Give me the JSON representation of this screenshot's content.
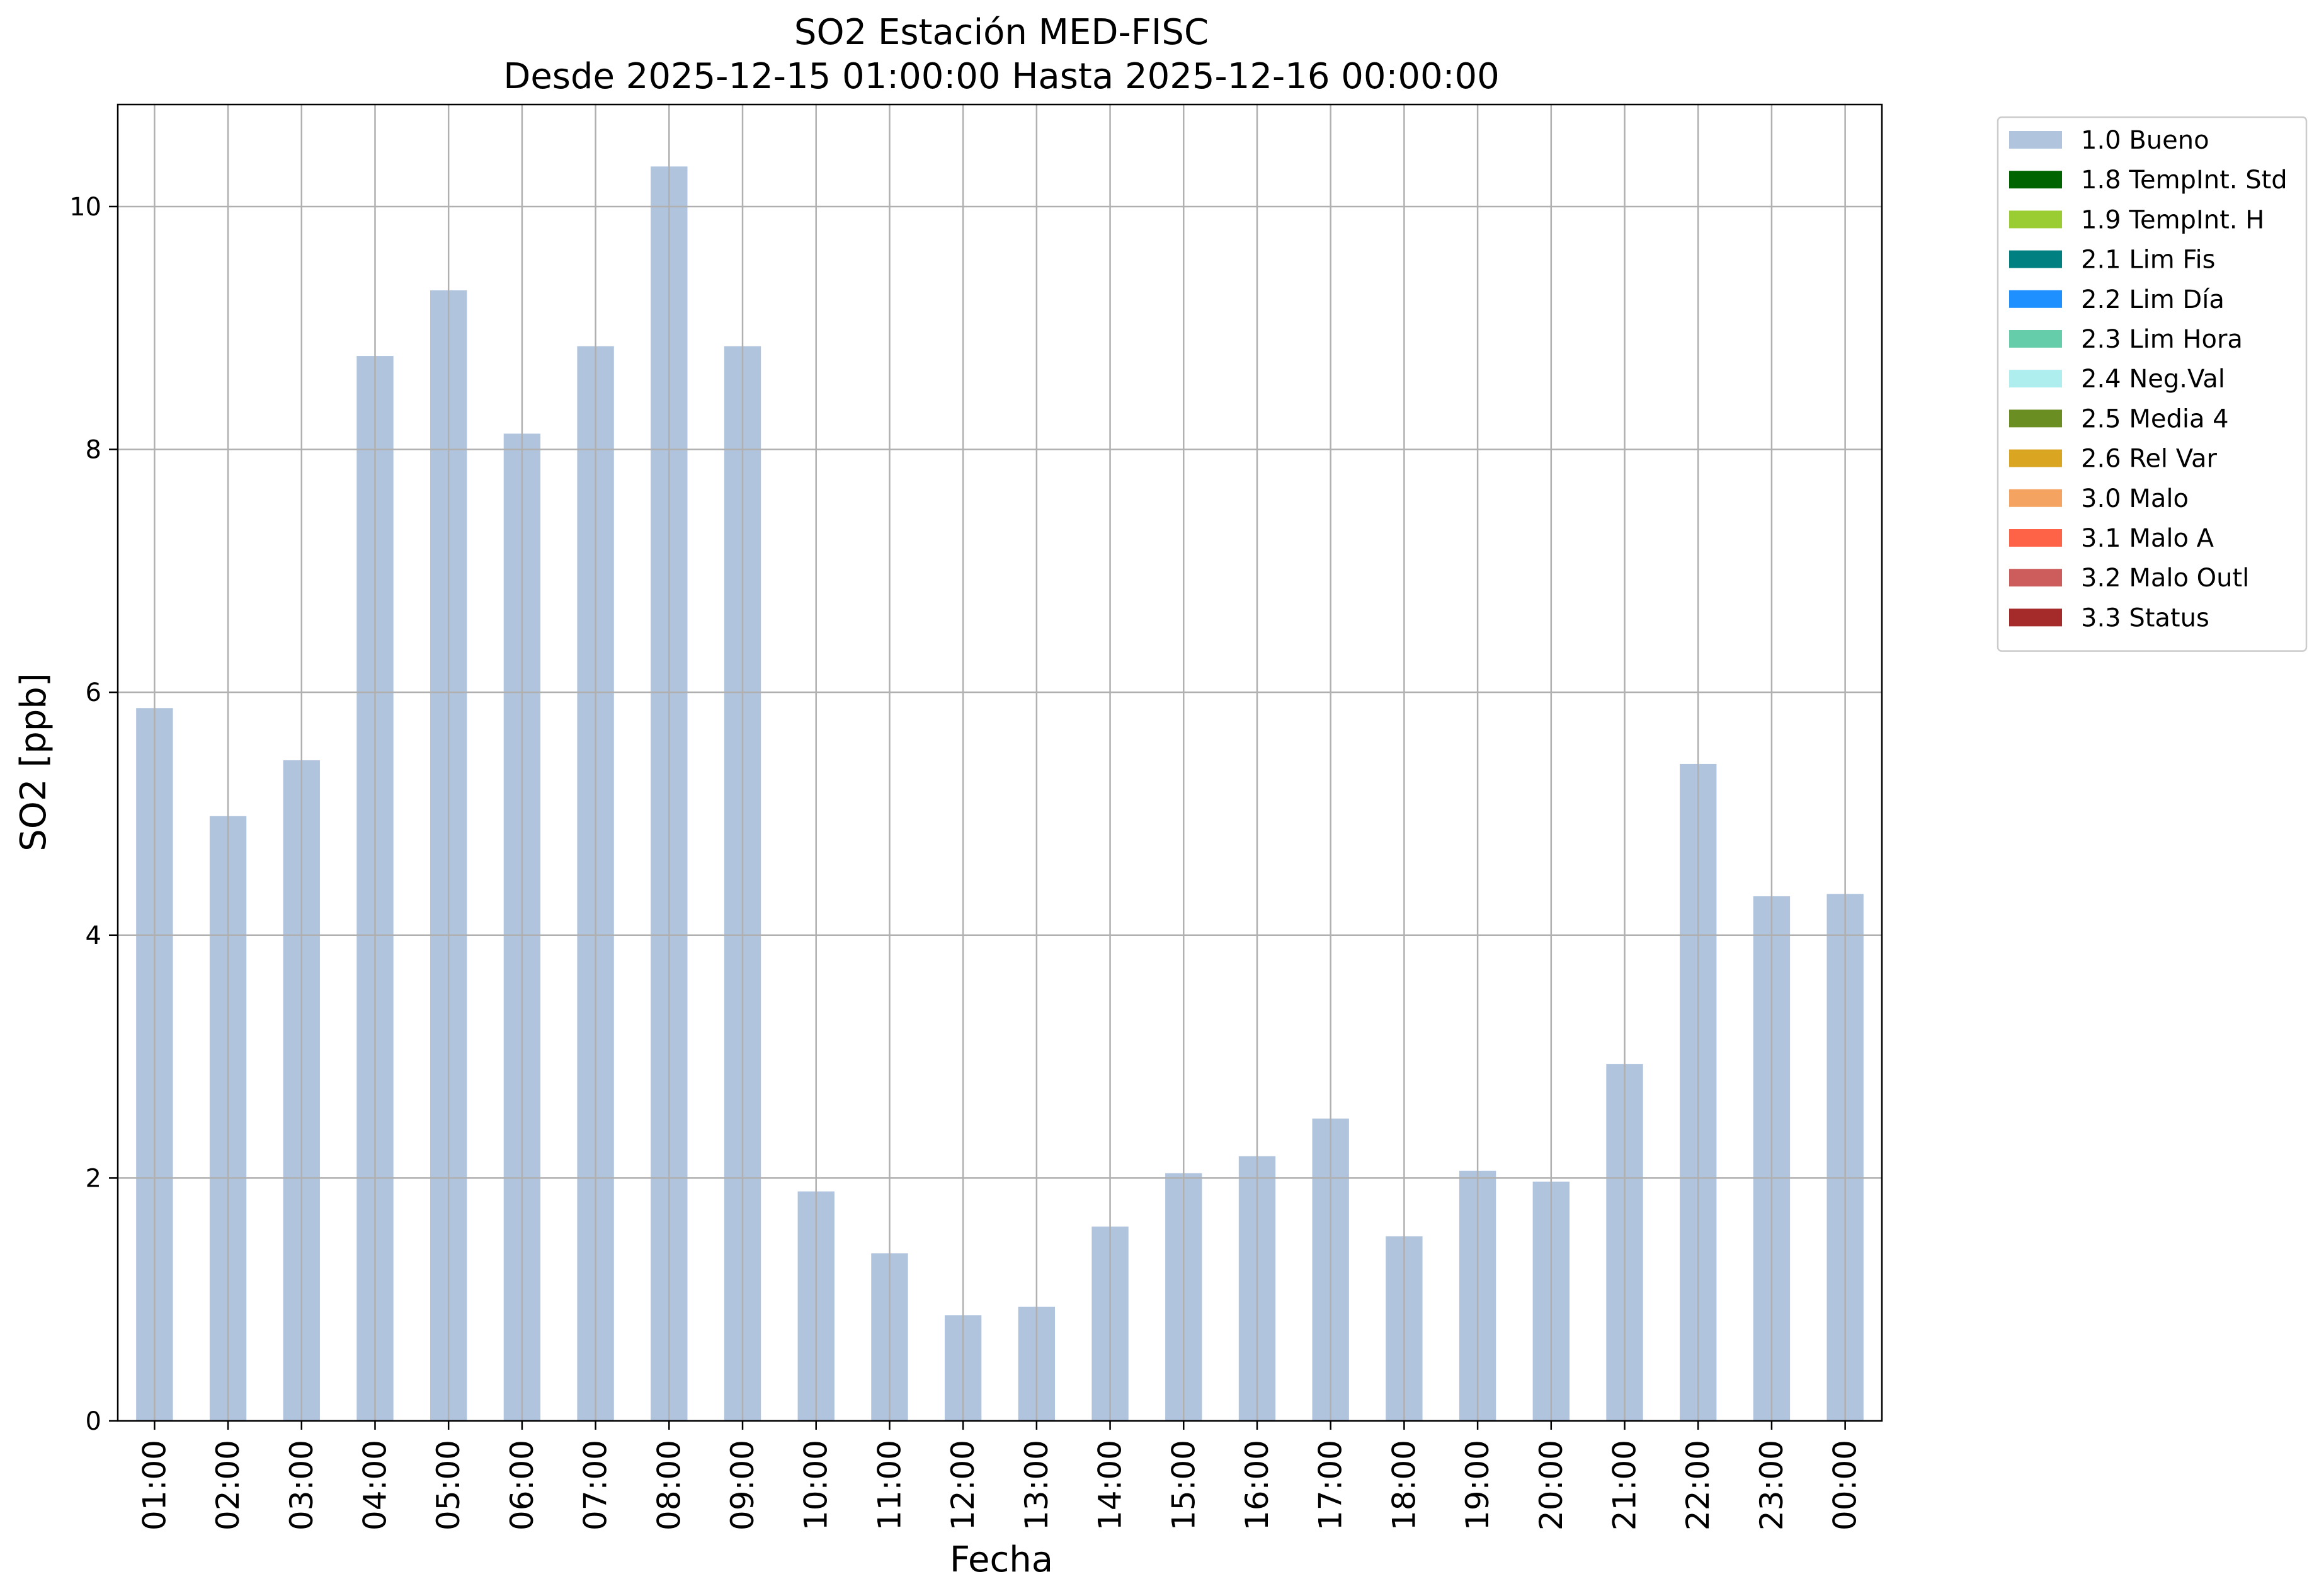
{
  "chart_data": {
    "type": "bar",
    "title": "SO2 Estación MED-FISC",
    "subtitle": "Desde 2025-12-15 01:00:00 Hasta 2025-12-16 00:00:00",
    "xlabel": "Fecha",
    "ylabel": "SO2 [ppb]",
    "ylim": [
      0,
      10.84
    ],
    "yticks": [
      "0",
      "2",
      "4",
      "6",
      "8",
      "10"
    ],
    "grid": true,
    "legend_position": "outside-top-right",
    "categories": [
      "01:00",
      "02:00",
      "03:00",
      "04:00",
      "05:00",
      "06:00",
      "07:00",
      "08:00",
      "09:00",
      "10:00",
      "11:00",
      "12:00",
      "13:00",
      "14:00",
      "15:00",
      "16:00",
      "17:00",
      "18:00",
      "19:00",
      "20:00",
      "21:00",
      "22:00",
      "23:00",
      "00:00"
    ],
    "series": [
      {
        "name": "1.0 Bueno",
        "color": "#b0c4de",
        "values": [
          5.87,
          4.98,
          5.44,
          8.77,
          9.31,
          8.13,
          8.85,
          10.33,
          8.85,
          1.89,
          1.38,
          0.87,
          0.94,
          1.6,
          2.04,
          2.18,
          2.49,
          1.52,
          2.06,
          1.97,
          2.94,
          5.41,
          4.32,
          4.34
        ]
      }
    ],
    "legend": [
      {
        "label": "1.0 Bueno",
        "color": "#b0c4de"
      },
      {
        "label": "1.8 TempInt. Std",
        "color": "#006400"
      },
      {
        "label": "1.9 TempInt. H",
        "color": "#9acd32"
      },
      {
        "label": "2.1 Lim Fis",
        "color": "#008080"
      },
      {
        "label": "2.2 Lim Día",
        "color": "#1e90ff"
      },
      {
        "label": "2.3 Lim Hora",
        "color": "#66cdaa"
      },
      {
        "label": "2.4 Neg.Val",
        "color": "#afeeee"
      },
      {
        "label": "2.5 Media 4",
        "color": "#6b8e23"
      },
      {
        "label": "2.6 Rel Var",
        "color": "#daa520"
      },
      {
        "label": "3.0 Malo",
        "color": "#f4a460"
      },
      {
        "label": "3.1 Malo A",
        "color": "#ff6347"
      },
      {
        "label": "3.2 Malo Outl",
        "color": "#cd5c5c"
      },
      {
        "label": "3.3 Status",
        "color": "#a52a2a"
      }
    ]
  }
}
